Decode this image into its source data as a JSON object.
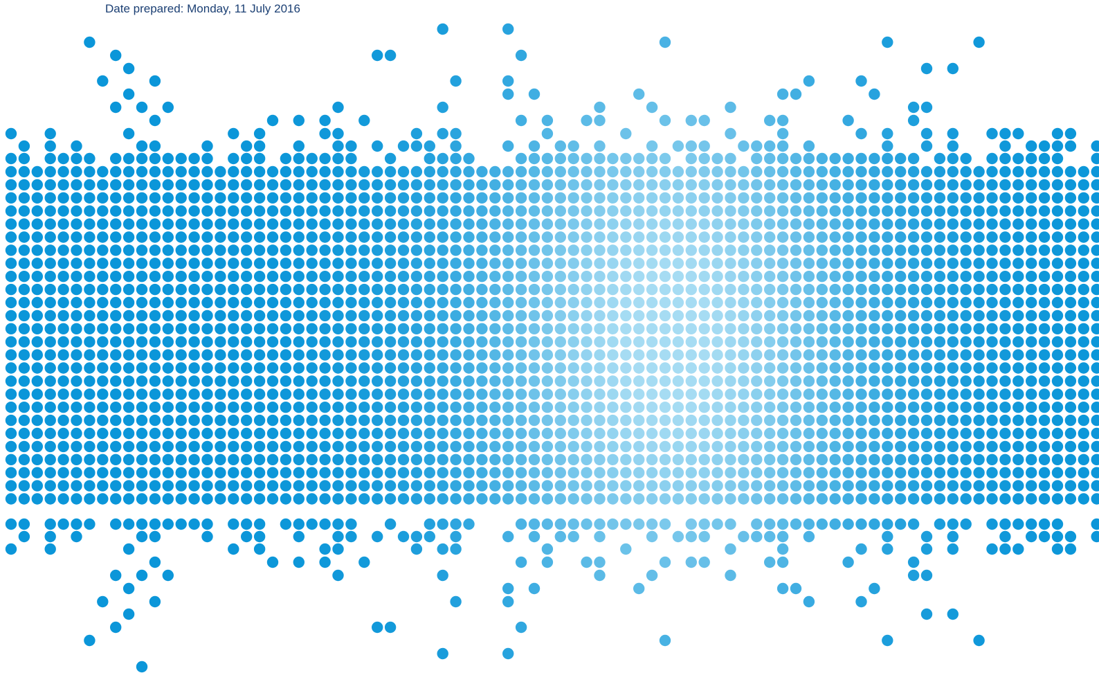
{
  "document": {
    "date_prepared": "Date prepared: Monday, 11 July 2016"
  },
  "graphic": {
    "name": "dotted-wave-banner",
    "colors": {
      "edge": "#0b96d9",
      "center": "#a6dcf3",
      "background": "#ffffff"
    }
  }
}
